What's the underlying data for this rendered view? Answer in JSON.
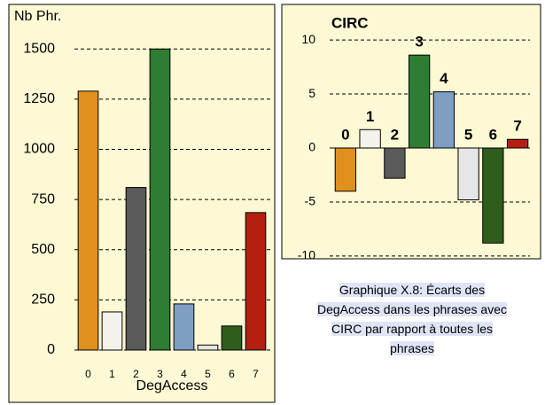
{
  "chart_data": [
    {
      "type": "bar",
      "y_label": "Nb Phr.",
      "x_label": "DegAccess",
      "categories": [
        "0",
        "1",
        "2",
        "3",
        "4",
        "5",
        "6",
        "7"
      ],
      "values": [
        1290,
        190,
        810,
        1500,
        230,
        25,
        120,
        685
      ],
      "colors": [
        "#e0901f",
        "#f4f2ea",
        "#5a5a5a",
        "#2f7d32",
        "#7f9ec4",
        "#e6e6e6",
        "#2f5e1c",
        "#b3200f"
      ],
      "ylim": [
        0,
        1700
      ],
      "yticks": [
        0,
        250,
        500,
        750,
        1000,
        1250,
        1500
      ],
      "grid": true
    },
    {
      "type": "bar",
      "title": "CIRC",
      "categories": [
        "0",
        "1",
        "2",
        "3",
        "4",
        "5",
        "6",
        "7"
      ],
      "values": [
        -4,
        1.7,
        -2.8,
        8.6,
        5.2,
        -4.8,
        -8.8,
        0.8
      ],
      "colors": [
        "#e0901f",
        "#f4f2ea",
        "#5a5a5a",
        "#2f7d32",
        "#7f9ec4",
        "#e6e6e6",
        "#2f5e1c",
        "#b3200f"
      ],
      "ylim": [
        -10.5,
        10.5
      ],
      "yticks": [
        -10,
        -5,
        0,
        5,
        10
      ],
      "grid": true
    }
  ],
  "caption": "Graphique X.8: Écarts des DegAccess dans les phrases avec CIRC par rapport à toutes les phrases"
}
